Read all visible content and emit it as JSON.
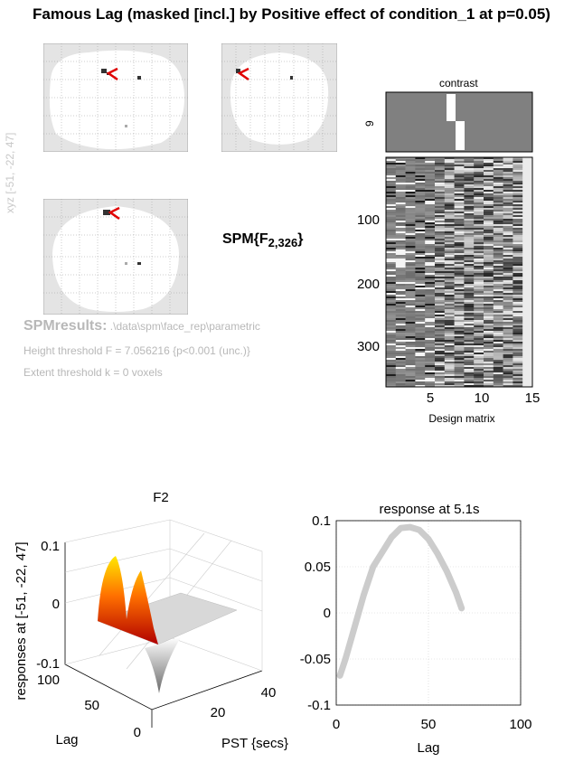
{
  "title": "Famous Lag (masked [incl.] by Positive effect of condition_1 at p=0.05)",
  "glass_brain": {
    "stat_label_main": "SPM{F",
    "stat_label_sub": "2,326",
    "stat_label_end": "}",
    "side_coords": "[-51, -22, 47]",
    "side_coords_faint": "xyz"
  },
  "results": {
    "heading": "SPMresults:",
    "path": " .\\data\\spm\\face_rep\\parametric",
    "height_threshold": "Height threshold F = 7.056216  {p<0.001 (unc.)}",
    "extent_threshold": "Extent threshold k = 0 voxels"
  },
  "design": {
    "contrast_title": "contrast",
    "contrast_ytick": "9",
    "xlabel": "Design matrix",
    "xticks": [
      "5",
      "10",
      "15"
    ],
    "yticks": [
      "100",
      "200",
      "300"
    ]
  },
  "colors": {
    "surface_hot": "#ffe800",
    "surface_mid": "#e02000",
    "line_gray": "#cccccc",
    "matrix_mid": "#808080"
  },
  "chart_data": [
    {
      "type": "surface",
      "title": "F2",
      "zlabel": "responses at [-51, -22, 47]",
      "ylabel": "Lag",
      "xlabel": "PST {secs}",
      "zlim": [
        -0.1,
        0.1
      ],
      "zticks": [
        "0.1",
        "0",
        "-0.1"
      ],
      "lag_ticks": [
        "100",
        "50",
        "0"
      ],
      "pst_ticks": [
        "20",
        "40"
      ],
      "peak_response": 0.1,
      "trough_response": -0.1
    },
    {
      "type": "line",
      "title": "response at 5.1s",
      "xlabel": "Lag",
      "ylabel": "",
      "xlim": [
        0,
        100
      ],
      "ylim": [
        -0.1,
        0.1
      ],
      "xticks": [
        "0",
        "50",
        "100"
      ],
      "yticks": [
        "0.1",
        "0.05",
        "0",
        "-0.05",
        "-0.1"
      ],
      "x": [
        2,
        5,
        10,
        15,
        20,
        25,
        30,
        35,
        40,
        45,
        50,
        55,
        60,
        65,
        68
      ],
      "y": [
        -0.068,
        -0.05,
        -0.015,
        0.02,
        0.05,
        0.066,
        0.082,
        0.092,
        0.093,
        0.09,
        0.08,
        0.064,
        0.045,
        0.022,
        0.005
      ]
    }
  ]
}
